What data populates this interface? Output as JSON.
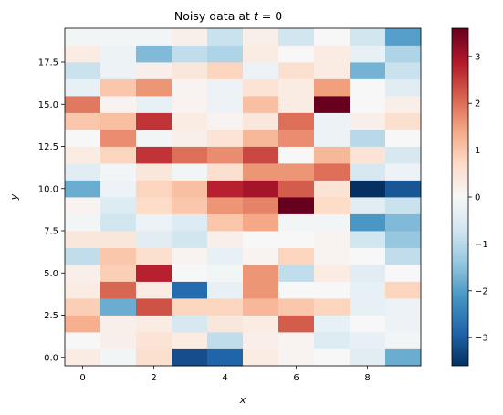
{
  "chart_data": {
    "type": "heatmap",
    "title_prefix": "Noisy data at ",
    "title_math": "t",
    "title_suffix": " = 0",
    "xlabel": "x",
    "ylabel": "y",
    "x": [
      0,
      1,
      2,
      3,
      4,
      5,
      6,
      7,
      8,
      9
    ],
    "y": [
      0,
      1,
      2,
      3,
      4,
      5,
      6,
      7,
      8,
      9,
      10,
      11,
      12,
      13,
      14,
      15,
      16,
      17,
      18,
      19
    ],
    "xlim": [
      -0.5,
      9.5
    ],
    "ylim": [
      -0.5,
      19.5
    ],
    "x_ticks": [
      0,
      2,
      4,
      6,
      8
    ],
    "x_tick_labels": [
      "0",
      "2",
      "4",
      "6",
      "8"
    ],
    "y_ticks": [
      0.0,
      2.5,
      5.0,
      7.5,
      10.0,
      12.5,
      15.0,
      17.5
    ],
    "y_tick_labels": [
      "0.0",
      "2.5",
      "5.0",
      "7.5",
      "10.0",
      "12.5",
      "15.0",
      "17.5"
    ],
    "colormap": "RdBu_r",
    "colormap_stops": [
      "#053061",
      "#2166ac",
      "#4393c3",
      "#92c5de",
      "#d1e5f0",
      "#f7f7f7",
      "#fddbc7",
      "#f4a582",
      "#d6604d",
      "#b2182b",
      "#67001f"
    ],
    "vmin": -3.6,
    "vmax": 3.6,
    "colorbar_ticks": [
      -3,
      -2,
      -1,
      0,
      1,
      2,
      3
    ],
    "colorbar_tick_labels": [
      "−3",
      "−2",
      "−1",
      "0",
      "1",
      "2",
      "3"
    ],
    "values": [
      [
        0.3,
        -0.1,
        0.6,
        -3.2,
        -2.9,
        0.3,
        0.1,
        0.0,
        -0.4,
        -1.8
      ],
      [
        0.0,
        0.2,
        0.5,
        0.3,
        -0.9,
        0.2,
        0.1,
        -0.5,
        -0.3,
        -0.1
      ],
      [
        1.3,
        0.2,
        0.3,
        -0.6,
        0.4,
        0.3,
        2.2,
        -0.3,
        0.0,
        -0.2
      ],
      [
        0.9,
        -1.8,
        2.3,
        0.8,
        0.8,
        1.2,
        1.0,
        0.8,
        -0.3,
        -0.2
      ],
      [
        0.3,
        2.1,
        0.3,
        -2.8,
        -0.3,
        1.6,
        0.0,
        0.0,
        -0.3,
        0.8
      ],
      [
        0.2,
        0.9,
        2.8,
        0.0,
        -0.1,
        1.6,
        -0.9,
        0.3,
        -0.4,
        0.0
      ],
      [
        -0.9,
        1.0,
        0.6,
        0.1,
        -0.3,
        0.1,
        0.8,
        0.1,
        0.0,
        -0.9
      ],
      [
        0.4,
        0.4,
        -0.4,
        -0.7,
        0.2,
        0.0,
        0.0,
        0.1,
        -0.7,
        -1.4
      ],
      [
        -0.1,
        -0.7,
        -0.2,
        -0.5,
        1.0,
        1.4,
        -0.1,
        -0.1,
        -2.1,
        -1.6
      ],
      [
        0.1,
        -0.5,
        0.7,
        1.0,
        1.6,
        1.8,
        3.6,
        0.7,
        -0.4,
        -0.8
      ],
      [
        -1.8,
        -0.2,
        0.8,
        1.1,
        2.8,
        3.0,
        2.2,
        0.5,
        -3.6,
        -3.1
      ],
      [
        -0.4,
        -0.1,
        0.4,
        -0.1,
        0.6,
        1.6,
        1.6,
        2.0,
        -0.6,
        -0.2
      ],
      [
        0.3,
        0.8,
        2.6,
        2.0,
        1.7,
        2.4,
        0.0,
        1.2,
        0.5,
        -0.6
      ],
      [
        0.0,
        1.7,
        -0.1,
        0.2,
        0.5,
        1.2,
        1.7,
        -0.2,
        -1.0,
        0.0
      ],
      [
        1.0,
        1.1,
        2.6,
        0.3,
        0.1,
        0.4,
        2.0,
        -0.2,
        0.2,
        0.6
      ],
      [
        1.9,
        0.1,
        -0.3,
        0.1,
        -0.2,
        1.1,
        0.3,
        3.6,
        0.0,
        0.2
      ],
      [
        -0.3,
        1.0,
        1.6,
        0.1,
        -0.2,
        0.5,
        0.3,
        1.5,
        0.0,
        -0.4
      ],
      [
        -0.8,
        -0.2,
        0.2,
        0.4,
        0.8,
        -0.2,
        0.6,
        0.3,
        -1.7,
        -0.8
      ],
      [
        0.3,
        -0.2,
        -1.6,
        -0.9,
        -1.1,
        0.3,
        0.0,
        0.3,
        -0.3,
        -1.1
      ],
      [
        -0.1,
        -0.1,
        -0.1,
        0.2,
        -0.8,
        0.2,
        -0.7,
        0.0,
        -0.7,
        -2.0
      ]
    ]
  }
}
